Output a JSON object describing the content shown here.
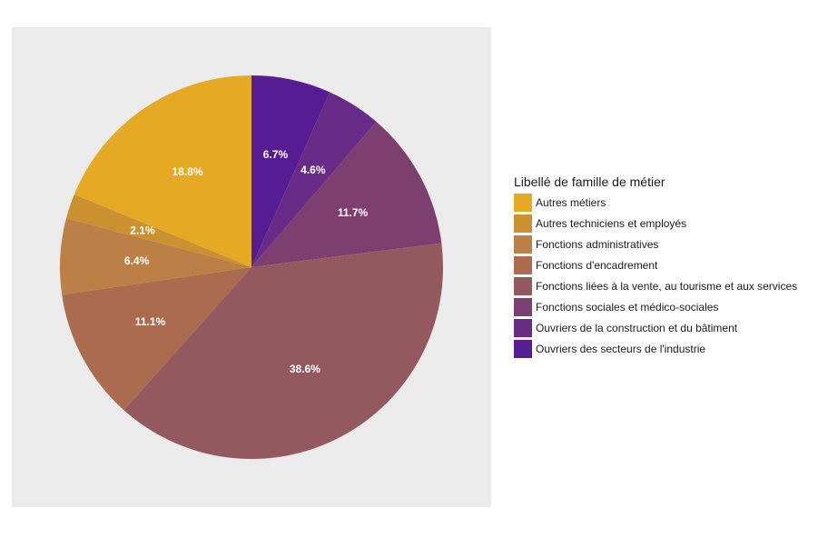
{
  "chart_data": {
    "type": "pie",
    "legend_title": "Libellé de famille de métier",
    "legend_position": "right",
    "slices": [
      {
        "name": "Ouvriers des secteurs de l'industrie",
        "value": 6.7,
        "label": "6.7%",
        "color": "#561c91"
      },
      {
        "name": "Ouvriers de la construction et du bâtiment",
        "value": 4.6,
        "label": "4.6%",
        "color": "#682c88"
      },
      {
        "name": "Fonctions sociales et médico-sociales",
        "value": 11.7,
        "label": "11.7%",
        "color": "#7d3e70"
      },
      {
        "name": "Fonctions liées à la vente, au tourisme et aux services",
        "value": 38.6,
        "label": "38.6%",
        "color": "#94595e"
      },
      {
        "name": "Fonctions d'encadrement",
        "value": 11.1,
        "label": "11.1%",
        "color": "#ab6b4f"
      },
      {
        "name": "Fonctions administratives",
        "value": 6.4,
        "label": "6.4%",
        "color": "#bc7f45"
      },
      {
        "name": "Autres techniciens et employés",
        "value": 2.1,
        "label": "2.1%",
        "color": "#cb9131"
      },
      {
        "name": "Autres métiers",
        "value": 18.8,
        "label": "18.8%",
        "color": "#e6a924"
      }
    ],
    "legend_order": [
      "Autres métiers",
      "Autres techniciens et employés",
      "Fonctions administratives",
      "Fonctions d'encadrement",
      "Fonctions liées à la vente, au tourisme et aux services",
      "Fonctions sociales et médico-sociales",
      "Ouvriers de la construction et du bâtiment",
      "Ouvriers des secteurs de l'industrie"
    ]
  }
}
